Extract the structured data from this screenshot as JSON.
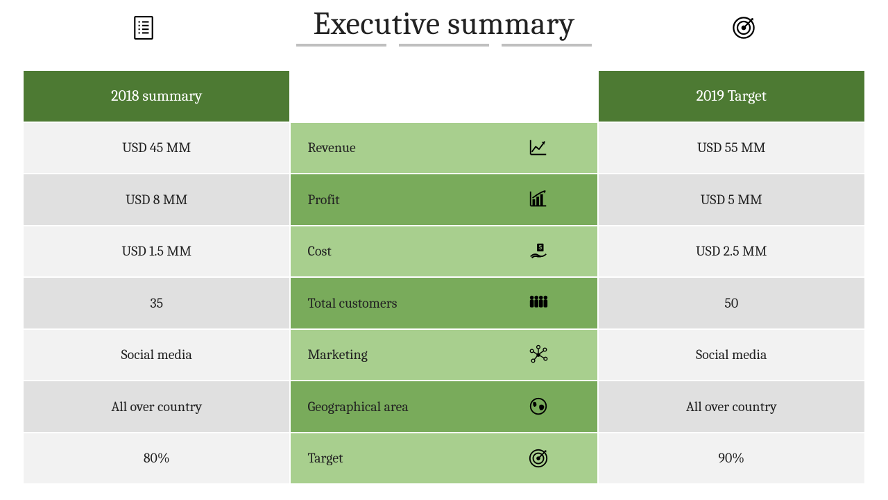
{
  "title": "Executive summary",
  "colors": {
    "header_bg": "#4d7a33",
    "mid_light": "#a8cf8e",
    "mid_dark": "#79ab5b",
    "side_light": "#f2f2f2",
    "side_dark": "#e0e0e0",
    "text": "#222222",
    "header_text": "#ffffff",
    "underline": "#bfbfbf"
  },
  "headers": {
    "left": "2018 summary",
    "right": "2019 Target"
  },
  "rows": [
    {
      "left": "USD 45 MM",
      "label": "Revenue",
      "icon": "chart-line-icon",
      "right": "USD 55 MM"
    },
    {
      "left": "USD 8 MM",
      "label": "Profit",
      "icon": "bar-chart-icon",
      "right": "USD 5 MM"
    },
    {
      "left": "USD 1.5 MM",
      "label": "Cost",
      "icon": "money-hand-icon",
      "right": "USD 2.5 MM"
    },
    {
      "left": "35",
      "label": "Total customers",
      "icon": "people-icon",
      "right": "50"
    },
    {
      "left": "Social media",
      "label": "Marketing",
      "icon": "network-icon",
      "right": "Social media"
    },
    {
      "left": "All over country",
      "label": "Geographical area",
      "icon": "globe-icon",
      "right": "All over country"
    },
    {
      "left": "80%",
      "label": "Target",
      "icon": "target-icon",
      "right": "90%"
    }
  ],
  "top_icons": {
    "left": "checklist-icon",
    "right": "target-icon"
  }
}
